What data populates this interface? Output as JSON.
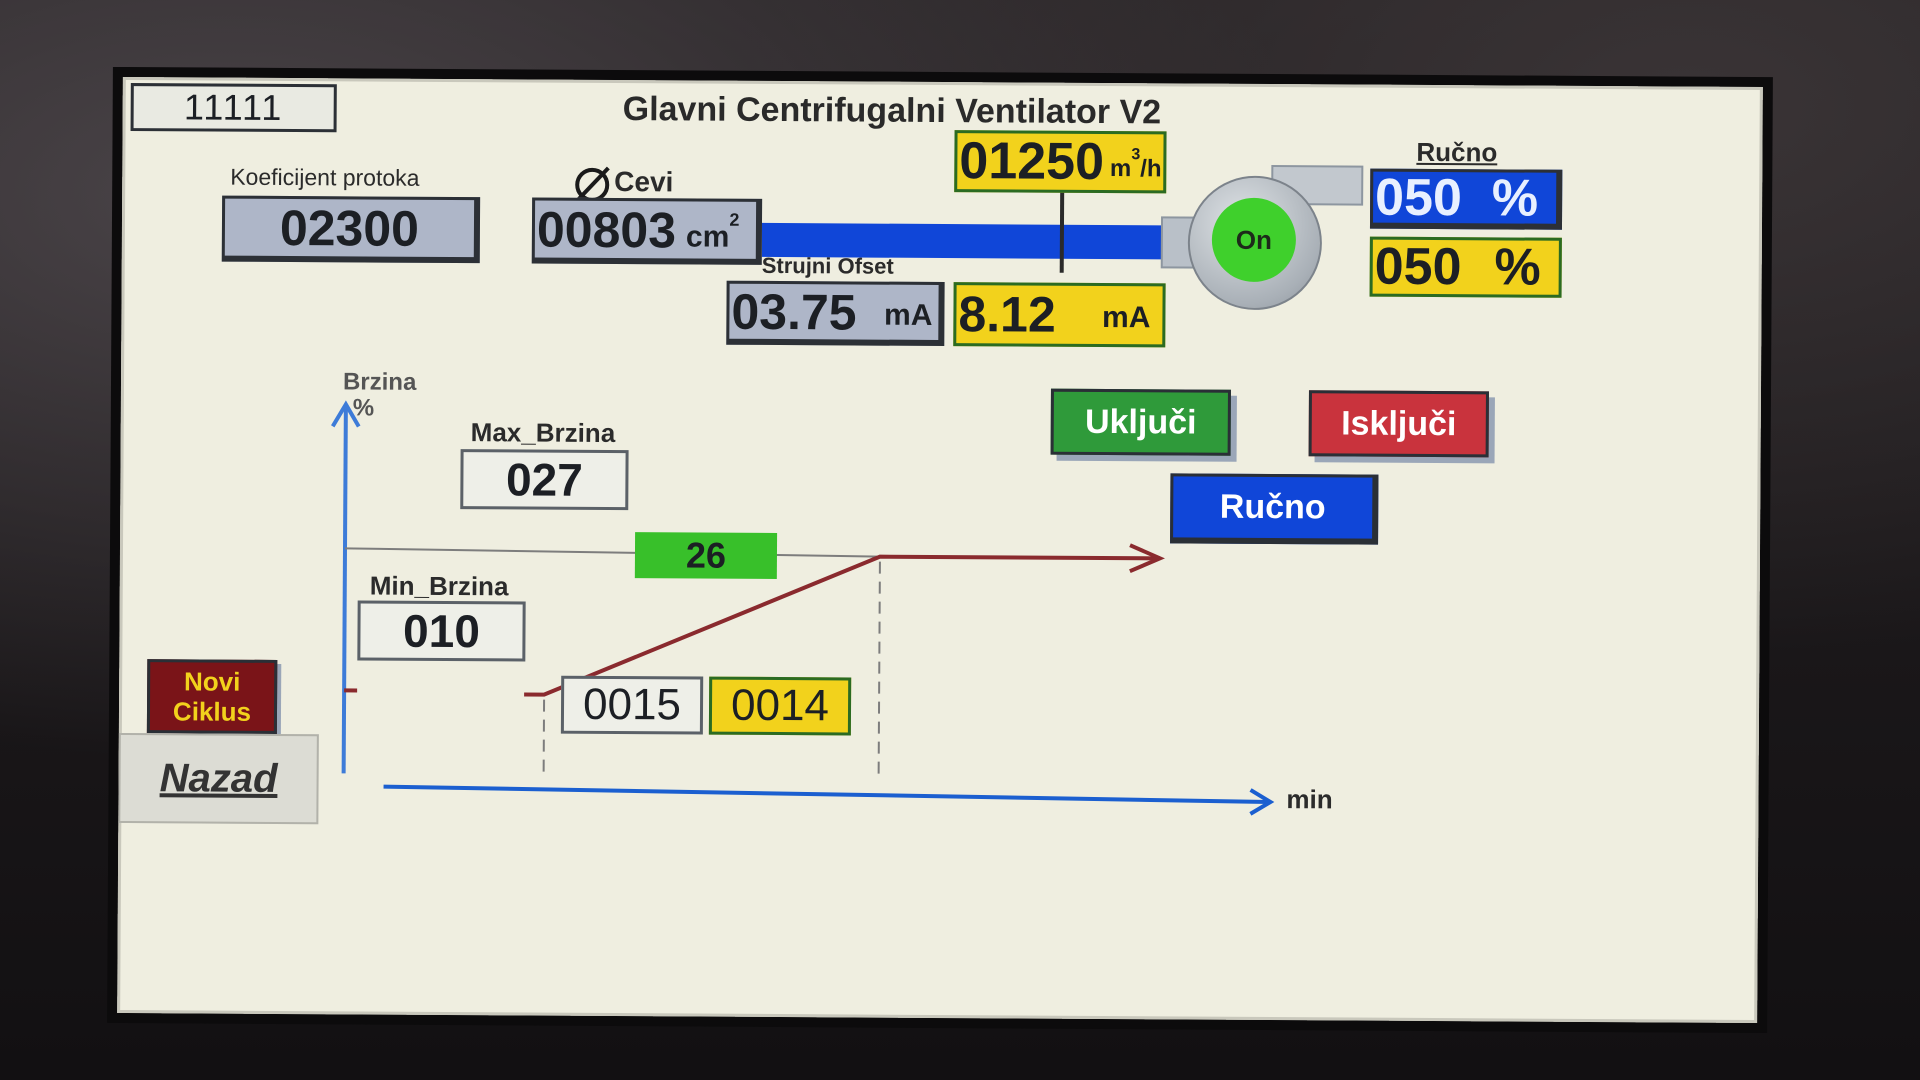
{
  "header": {
    "id_field": "11111",
    "title": "Glavni Centrifugalni Ventilator  V2"
  },
  "flow": {
    "coef_label": "Koeficijent protoka",
    "coef_value": "02300",
    "pipe_label": "Cevi",
    "pipe_value": "00803",
    "pipe_unit": "cm",
    "pipe_unit_sup": "2",
    "flow_value": "01250",
    "flow_unit": "m",
    "flow_unit_sup": "3",
    "flow_unit_tail": "/h"
  },
  "current": {
    "offset_label": "Strujni Ofset",
    "offset_value": "03.75",
    "offset_unit": "mA",
    "actual_value": "8.12",
    "actual_unit": "mA"
  },
  "fan": {
    "status": "On"
  },
  "manual": {
    "label": "Ručno",
    "blue_value": "050",
    "blue_unit": "%",
    "yellow_value": "050",
    "yellow_unit": "%"
  },
  "buttons": {
    "on_label": "Uključi",
    "off_label": "Isključi",
    "manual_label": "Ručno",
    "new_cycle_line1": "Novi",
    "new_cycle_line2": "Ciklus",
    "back_label": "Nazad"
  },
  "graph": {
    "y_axis_label": "Brzina",
    "y_axis_unit": "%",
    "x_axis_unit": "min",
    "max_label": "Max_Brzina",
    "max_value": "027",
    "min_label": "Min_Brzina",
    "min_value": "010",
    "current_speed": "26",
    "ramp_time_set": "0015",
    "ramp_time_actual": "0014"
  },
  "colors": {
    "blue": "#1046d8",
    "yellow": "#f2d21c",
    "green": "#38c02a",
    "field_gray": "#aeb6c8",
    "dark_red": "#7a1418",
    "ramp_line": "#8a2a2e"
  }
}
